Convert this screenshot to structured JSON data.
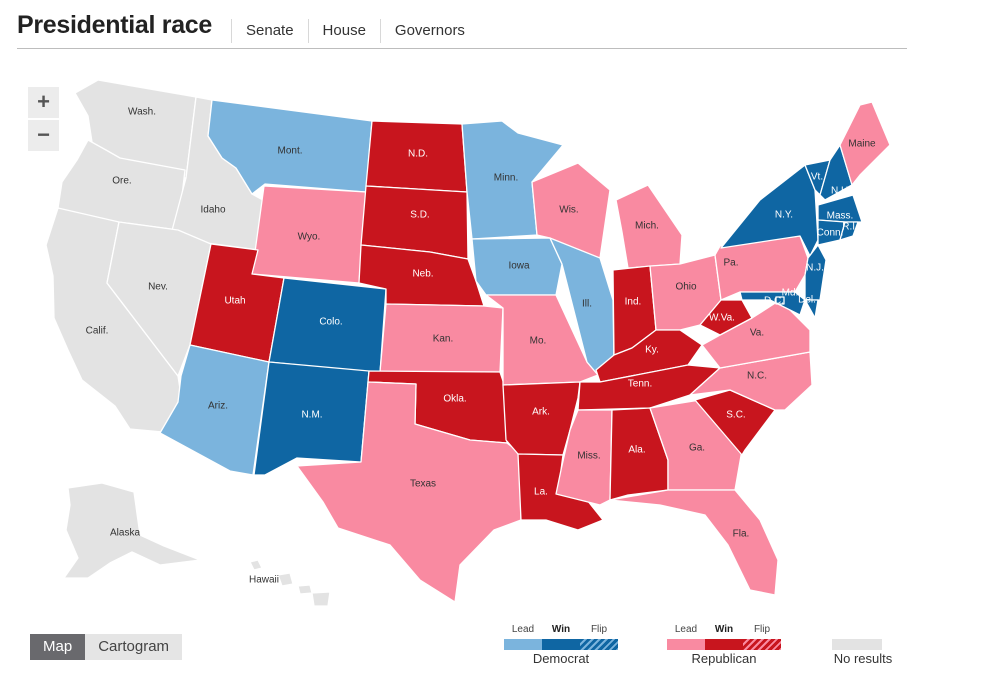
{
  "header": {
    "title": "Presidential race",
    "tabs": [
      "Senate",
      "House",
      "Governors"
    ]
  },
  "zoom": {
    "in": "+",
    "out": "−"
  },
  "colors": {
    "dem_lead": "#7bb4dd",
    "dem_win": "#0f66a3",
    "rep_lead": "#f98aa1",
    "rep_win": "#c8151e",
    "no_results": "#e3e3e3",
    "border": "#ffffff",
    "label_dark": "#333333",
    "label_light": "#ffffff"
  },
  "states": [
    {
      "name": "Wash.",
      "status": "none"
    },
    {
      "name": "Ore.",
      "status": "none"
    },
    {
      "name": "Idaho",
      "status": "none"
    },
    {
      "name": "Calif.",
      "status": "none"
    },
    {
      "name": "Nev.",
      "status": "none"
    },
    {
      "name": "Mont.",
      "status": "dem_lead"
    },
    {
      "name": "Wyo.",
      "status": "rep_lead"
    },
    {
      "name": "Utah",
      "status": "rep_win"
    },
    {
      "name": "Colo.",
      "status": "dem_win"
    },
    {
      "name": "Ariz.",
      "status": "dem_lead"
    },
    {
      "name": "N.M.",
      "status": "dem_win"
    },
    {
      "name": "N.D.",
      "status": "rep_win"
    },
    {
      "name": "S.D.",
      "status": "rep_win"
    },
    {
      "name": "Neb.",
      "status": "rep_win"
    },
    {
      "name": "Kan.",
      "status": "rep_lead"
    },
    {
      "name": "Okla.",
      "status": "rep_win"
    },
    {
      "name": "Texas",
      "status": "rep_lead"
    },
    {
      "name": "Minn.",
      "status": "dem_lead"
    },
    {
      "name": "Iowa",
      "status": "dem_lead"
    },
    {
      "name": "Mo.",
      "status": "rep_lead"
    },
    {
      "name": "Ark.",
      "status": "rep_win"
    },
    {
      "name": "La.",
      "status": "rep_win"
    },
    {
      "name": "Wis.",
      "status": "rep_lead"
    },
    {
      "name": "Ill.",
      "status": "dem_lead"
    },
    {
      "name": "Mich.",
      "status": "rep_lead"
    },
    {
      "name": "Ind.",
      "status": "rep_win"
    },
    {
      "name": "Ohio",
      "status": "rep_lead"
    },
    {
      "name": "Ky.",
      "status": "rep_win"
    },
    {
      "name": "Tenn.",
      "status": "rep_win"
    },
    {
      "name": "Miss.",
      "status": "rep_lead"
    },
    {
      "name": "Ala.",
      "status": "rep_win"
    },
    {
      "name": "Ga.",
      "status": "rep_lead"
    },
    {
      "name": "Fla.",
      "status": "rep_lead"
    },
    {
      "name": "S.C.",
      "status": "rep_win"
    },
    {
      "name": "N.C.",
      "status": "rep_lead"
    },
    {
      "name": "Va.",
      "status": "rep_lead"
    },
    {
      "name": "W.Va.",
      "status": "rep_win"
    },
    {
      "name": "Pa.",
      "status": "rep_lead"
    },
    {
      "name": "N.Y.",
      "status": "dem_win"
    },
    {
      "name": "Vt.",
      "status": "dem_win"
    },
    {
      "name": "N.H.",
      "status": "dem_win"
    },
    {
      "name": "Maine",
      "status": "rep_lead"
    },
    {
      "name": "Mass.",
      "status": "dem_win"
    },
    {
      "name": "Conn.",
      "status": "dem_win"
    },
    {
      "name": "R.I.",
      "status": "dem_win"
    },
    {
      "name": "N.J.",
      "status": "dem_win"
    },
    {
      "name": "Del.",
      "status": "dem_win"
    },
    {
      "name": "Md.",
      "status": "dem_win"
    },
    {
      "name": "D.C.",
      "status": "dem_win"
    },
    {
      "name": "Alaska",
      "status": "none"
    },
    {
      "name": "Hawaii",
      "status": "none"
    }
  ],
  "view_toggle": {
    "map": "Map",
    "cartogram": "Cartogram",
    "active": "Map"
  },
  "legend": {
    "heads": [
      "Lead",
      "Win",
      "Flip"
    ],
    "democrat": "Democrat",
    "republican": "Republican",
    "no_results": "No results"
  }
}
